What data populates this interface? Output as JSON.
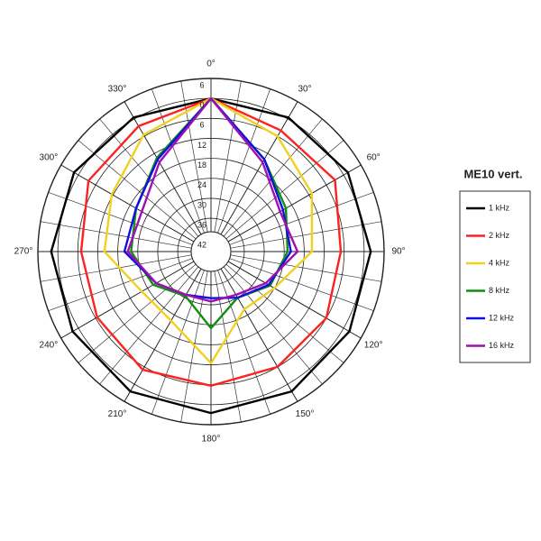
{
  "chart_data": {
    "type": "polar",
    "title": "ME10 vert.",
    "theta": [
      0,
      30,
      60,
      90,
      120,
      150,
      180,
      210,
      240,
      270,
      300,
      330
    ],
    "thetaticks": [
      {
        "value": 0,
        "label": "0°"
      },
      {
        "value": 30,
        "label": "30°"
      },
      {
        "value": 60,
        "label": "60°"
      },
      {
        "value": 90,
        "label": "90°"
      },
      {
        "value": 120,
        "label": "120°"
      },
      {
        "value": 150,
        "label": "150°"
      },
      {
        "value": 180,
        "label": "180°"
      },
      {
        "value": 210,
        "label": "210°"
      },
      {
        "value": 240,
        "label": "240°"
      },
      {
        "value": 270,
        "label": "270°"
      },
      {
        "value": 300,
        "label": "300°"
      },
      {
        "value": 330,
        "label": "330°"
      }
    ],
    "rlim": [
      -46,
      6
    ],
    "rticks": [
      6,
      0,
      {
        "value": -6,
        "label": "6"
      },
      {
        "value": -12,
        "label": "12"
      },
      {
        "value": -18,
        "label": "18"
      },
      {
        "value": -24,
        "label": "24"
      },
      {
        "value": -30,
        "label": "30"
      },
      {
        "value": -36,
        "label": "36"
      },
      {
        "value": -42,
        "label": "42"
      }
    ],
    "grid": true,
    "legend": "right",
    "series": [
      {
        "name": "1 kHz",
        "color": "#000000",
        "values": [
          0,
          0.5,
          1.5,
          2,
          2,
          2.5,
          2.5,
          2.5,
          2,
          2,
          1.5,
          0.5
        ]
      },
      {
        "name": "2 kHz",
        "color": "#ff2020",
        "values": [
          0,
          -4,
          -3,
          -7,
          -6,
          -6,
          -5.7,
          -5,
          -6.5,
          -7,
          -3.5,
          -2.5
        ]
      },
      {
        "name": "4 kHz",
        "color": "#f2d020",
        "values": [
          0,
          -6,
          -11,
          -15.7,
          -24,
          -26,
          -12.5,
          -22,
          -22,
          -14,
          -11.6,
          -5.5
        ]
      },
      {
        "name": "8 kHz",
        "color": "#109010",
        "values": [
          0,
          -14,
          -20,
          -23,
          -25.5,
          -30,
          -23,
          -30.6,
          -26,
          -22,
          -20,
          -13.5
        ]
      },
      {
        "name": "12 kHz",
        "color": "#1010e0",
        "values": [
          0,
          -14,
          -21,
          -22,
          -26,
          -30,
          -32,
          -31,
          -27,
          -20,
          -20,
          -14
        ]
      },
      {
        "name": "16 kHz",
        "color": "#a010b0",
        "values": [
          0,
          -15,
          -22,
          -20,
          -27,
          -31,
          -31,
          -31,
          -27,
          -21,
          -22,
          -15
        ]
      }
    ]
  }
}
